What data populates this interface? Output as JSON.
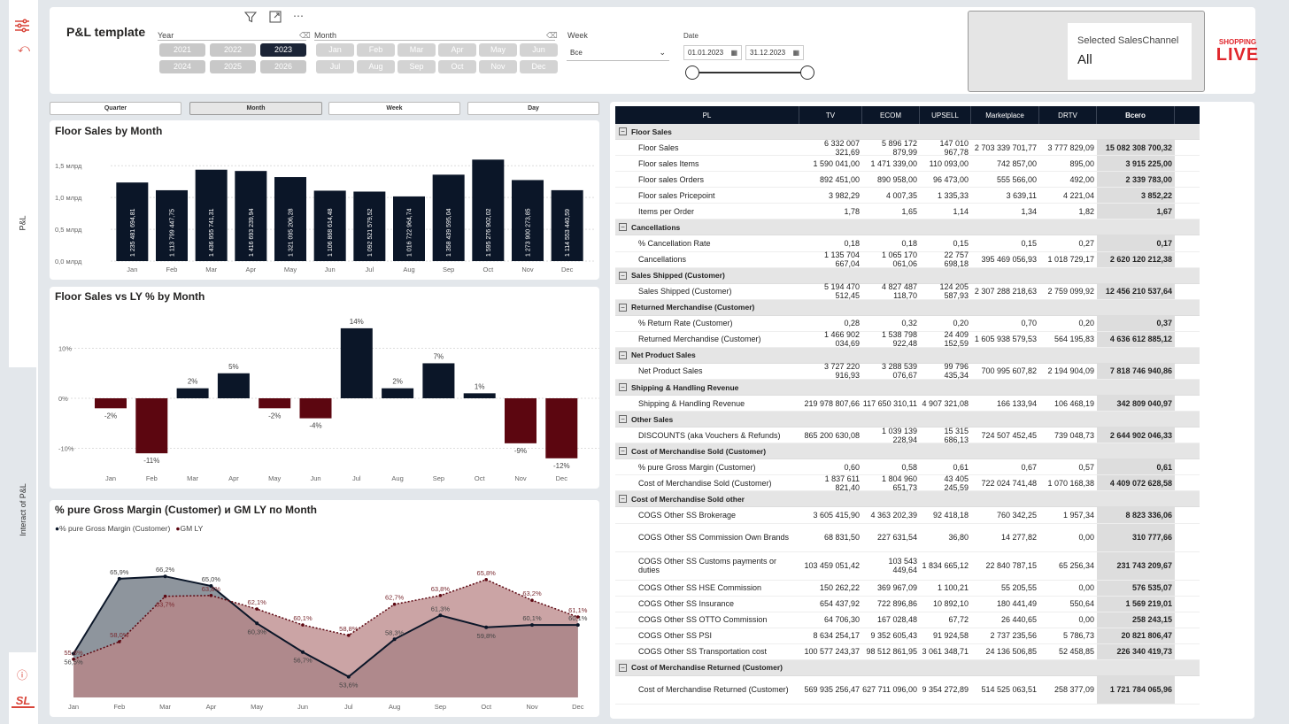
{
  "nav": {
    "pl_tab": "P&L",
    "interact_tab": "Interact of P&L",
    "logo": "SL"
  },
  "header": {
    "title": "P&L template",
    "year_label": "Year",
    "years": [
      "2021",
      "2022",
      "2023",
      "2024",
      "2025",
      "2026"
    ],
    "selected_year": "2023",
    "month_label": "Month",
    "months": [
      "Jan",
      "Feb",
      "Mar",
      "Apr",
      "May",
      "Jun",
      "Jul",
      "Aug",
      "Sep",
      "Oct",
      "Nov",
      "Dec"
    ],
    "week_label": "Week",
    "week_value": "Все",
    "date_label": "Date",
    "date_from": "01.01.2023",
    "date_to": "31.12.2023",
    "channel_label": "Selected SalesChannel",
    "channel_value": "All",
    "brand_line1": "SHOPPING",
    "brand_line2": "LIVE"
  },
  "granularity": [
    "Quarter",
    "Month",
    "Week",
    "Day"
  ],
  "selected_granularity": "Month",
  "colors": {
    "navy": "#0b1628",
    "maroon": "#5c0610",
    "grey_area": "#7a828c",
    "rose_area": "#b98587",
    "accent": "#d9453a"
  },
  "chart_data": [
    {
      "type": "bar",
      "title": "Floor Sales by Month",
      "categories": [
        "Jan",
        "Feb",
        "Mar",
        "Apr",
        "May",
        "Jun",
        "Jul",
        "Aug",
        "Sep",
        "Oct",
        "Nov",
        "Dec"
      ],
      "values": [
        1.2354816948,
        1.1137994478,
        1.4369557413,
        1.4166932399,
        1.3210952068,
        1.1068686145,
        1.0925215795,
        1.0167229647,
        1.358439595,
        1.595276902,
        1.2739002738,
        1.1145534406
      ],
      "labels": [
        "1 235 481 694,81",
        "1 113 799 447,75",
        "1 436 955 741,31",
        "1 416 693 239,94",
        "1 321 095 206,28",
        "1 106 868 614,48",
        "1 092 521 579,52",
        "1 016 722 964,74",
        "1 358 439 595,04",
        "1 595 276 902,02",
        "1 273 900 273,85",
        "1 114 553 440,59"
      ],
      "yticks": [
        "0,0 млрд",
        "0,5 млрд",
        "1,0 млрд",
        "1,5 млрд"
      ],
      "ylim": [
        0,
        1.6
      ]
    },
    {
      "type": "bar",
      "title": "Floor Sales vs LY % by Month",
      "categories": [
        "Jan",
        "Feb",
        "Mar",
        "Apr",
        "May",
        "Jun",
        "Jul",
        "Aug",
        "Sep",
        "Oct",
        "Nov",
        "Dec"
      ],
      "values": [
        -2,
        -11,
        2,
        5,
        -2,
        -4,
        14,
        2,
        7,
        1,
        -9,
        -12
      ],
      "labels": [
        "-2%",
        "-11%",
        "2%",
        "5%",
        "-2%",
        "-4%",
        "14%",
        "2%",
        "7%",
        "1%",
        "-9%",
        "-12%"
      ],
      "yticks": [
        "-10%",
        "0%",
        "10%"
      ],
      "ylim": [
        -12,
        15
      ]
    },
    {
      "type": "area",
      "title": "% pure Gross Margin (Customer) и GM LY по Month",
      "categories": [
        "Jan",
        "Feb",
        "Mar",
        "Apr",
        "May",
        "Jun",
        "Jul",
        "Aug",
        "Sep",
        "Oct",
        "Nov",
        "Dec"
      ],
      "series": [
        {
          "name": "% pure Gross Margin (Customer)",
          "values": [
            56.5,
            65.9,
            66.2,
            65.0,
            60.3,
            56.7,
            53.6,
            58.3,
            61.3,
            59.8,
            60.1,
            60.1
          ],
          "labels": [
            "56,5%",
            "65,9%",
            "66,2%",
            "65,0%",
            "60,3%",
            "56,7%",
            "53,6%",
            "58,3%",
            "61,3%",
            "59,8%",
            "60,1%",
            "60,1%"
          ]
        },
        {
          "name": "GM LY",
          "values": [
            55.8,
            58.0,
            63.7,
            63.8,
            62.1,
            60.1,
            58.8,
            62.7,
            63.8,
            65.8,
            63.2,
            61.1
          ],
          "labels": [
            "55,8%",
            "58,0%",
            "63,7%",
            "63,8%",
            "62,1%",
            "60,1%",
            "58,8%",
            "62,7%",
            "63,8%",
            "65,8%",
            "63,2%",
            "61,1%"
          ]
        }
      ],
      "ylim": [
        51,
        68
      ]
    }
  ],
  "table": {
    "columns": [
      "PL",
      "TV",
      "ECOM",
      "UPSELL",
      "Marketplace",
      "DRTV",
      "Всего"
    ],
    "rows": [
      {
        "g": true,
        "l": "Floor Sales"
      },
      {
        "l": "Floor Sales",
        "v": [
          "6 332 007 321,69",
          "5 896 172 879,99",
          "147 010 967,78",
          "2 703 339 701,77",
          "3 777 829,09",
          "15 082 308 700,32"
        ]
      },
      {
        "l": "Floor sales Items",
        "v": [
          "1 590 041,00",
          "1 471 339,00",
          "110 093,00",
          "742 857,00",
          "895,00",
          "3 915 225,00"
        ]
      },
      {
        "l": "Floor sales Orders",
        "v": [
          "892 451,00",
          "890 958,00",
          "96 473,00",
          "555 566,00",
          "492,00",
          "2 339 783,00"
        ]
      },
      {
        "l": "Floor sales Pricepoint",
        "v": [
          "3 982,29",
          "4 007,35",
          "1 335,33",
          "3 639,11",
          "4 221,04",
          "3 852,22"
        ]
      },
      {
        "l": "Items per Order",
        "v": [
          "1,78",
          "1,65",
          "1,14",
          "1,34",
          "1,82",
          "1,67"
        ]
      },
      {
        "g": true,
        "l": "Cancellations"
      },
      {
        "l": "% Cancellation Rate",
        "v": [
          "0,18",
          "0,18",
          "0,15",
          "0,15",
          "0,27",
          "0,17"
        ]
      },
      {
        "l": "Cancellations",
        "v": [
          "1 135 704 667,04",
          "1 065 170 061,06",
          "22 757 698,18",
          "395 469 056,93",
          "1 018 729,17",
          "2 620 120 212,38"
        ]
      },
      {
        "g": true,
        "l": "Sales Shipped (Customer)"
      },
      {
        "l": "Sales Shipped (Customer)",
        "v": [
          "5 194 470 512,45",
          "4 827 487 118,70",
          "124 205 587,93",
          "2 307 288 218,63",
          "2 759 099,92",
          "12 456 210 537,64"
        ]
      },
      {
        "g": true,
        "l": "Returned Merchandise (Customer)"
      },
      {
        "l": "% Return Rate (Customer)",
        "v": [
          "0,28",
          "0,32",
          "0,20",
          "0,70",
          "0,20",
          "0,37"
        ]
      },
      {
        "l": "Returned Merchandise (Customer)",
        "v": [
          "1 466 902 034,69",
          "1 538 798 922,48",
          "24 409 152,59",
          "1 605 938 579,53",
          "564 195,83",
          "4 636 612 885,12"
        ]
      },
      {
        "g": true,
        "l": "Net Product Sales"
      },
      {
        "l": "Net Product Sales",
        "v": [
          "3 727 220 916,93",
          "3 288 539 076,67",
          "99 796 435,34",
          "700 995 607,82",
          "2 194 904,09",
          "7 818 746 940,86"
        ]
      },
      {
        "g": true,
        "l": "Shipping & Handling Revenue"
      },
      {
        "l": "Shipping & Handling Revenue",
        "v": [
          "219 978 807,66",
          "117 650 310,11",
          "4 907 321,08",
          "166 133,94",
          "106 468,19",
          "342 809 040,97"
        ]
      },
      {
        "g": true,
        "l": "Other Sales"
      },
      {
        "l": "DISCOUNTS (aka Vouchers & Refunds)",
        "v": [
          "865 200 630,08",
          "1 039 139 228,94",
          "15 315 686,13",
          "724 507 452,45",
          "739 048,73",
          "2 644 902 046,33"
        ]
      },
      {
        "g": true,
        "l": "Cost of Merchandise Sold (Customer)"
      },
      {
        "l": "% pure Gross Margin (Customer)",
        "v": [
          "0,60",
          "0,58",
          "0,61",
          "0,67",
          "0,57",
          "0,61"
        ]
      },
      {
        "l": "Cost of Merchandise Sold (Customer)",
        "v": [
          "1 837 611 821,40",
          "1 804 960 651,73",
          "43 405 245,59",
          "722 024 741,48",
          "1 070 168,38",
          "4 409 072 628,58"
        ]
      },
      {
        "g": true,
        "l": "Cost of Merchandise Sold other"
      },
      {
        "l": "COGS Other SS Brokerage",
        "v": [
          "3 605 415,90",
          "4 363 202,39",
          "92 418,18",
          "760 342,25",
          "1 957,34",
          "8 823 336,06"
        ]
      },
      {
        "l": "COGS Other SS Commission Own Brands",
        "v": [
          "68 831,50",
          "227 631,54",
          "36,80",
          "14 277,82",
          "0,00",
          "310 777,66"
        ],
        "tall": true
      },
      {
        "l": "COGS Other SS Customs payments or duties",
        "v": [
          "103 459 051,42",
          "103 543 449,64",
          "1 834 665,12",
          "22 840 787,15",
          "65 256,34",
          "231 743 209,67"
        ],
        "tall": true
      },
      {
        "l": "COGS Other SS HSE Commission",
        "v": [
          "150 262,22",
          "369 967,09",
          "1 100,21",
          "55 205,55",
          "0,00",
          "576 535,07"
        ]
      },
      {
        "l": "COGS Other SS Insurance",
        "v": [
          "654 437,92",
          "722 896,86",
          "10 892,10",
          "180 441,49",
          "550,64",
          "1 569 219,01"
        ]
      },
      {
        "l": "COGS Other SS OTTO Commission",
        "v": [
          "64 706,30",
          "167 028,48",
          "67,72",
          "26 440,65",
          "0,00",
          "258 243,15"
        ]
      },
      {
        "l": "COGS Other SS PSI",
        "v": [
          "8 634 254,17",
          "9 352 605,43",
          "91 924,58",
          "2 737 235,56",
          "5 786,73",
          "20 821 806,47"
        ]
      },
      {
        "l": "COGS Other SS Transportation cost",
        "v": [
          "100 577 243,37",
          "98 512 861,95",
          "3 061 348,71",
          "24 136 506,85",
          "52 458,85",
          "226 340 419,73"
        ]
      },
      {
        "g": true,
        "l": "Cost of Merchandise Returned (Customer)"
      },
      {
        "l": "Cost of Merchandise Returned (Customer)",
        "v": [
          "569 935 256,47",
          "627 711 096,00",
          "9 354 272,89",
          "514 525 063,51",
          "258 377,09",
          "1 721 784 065,96"
        ],
        "tall": true
      }
    ]
  }
}
